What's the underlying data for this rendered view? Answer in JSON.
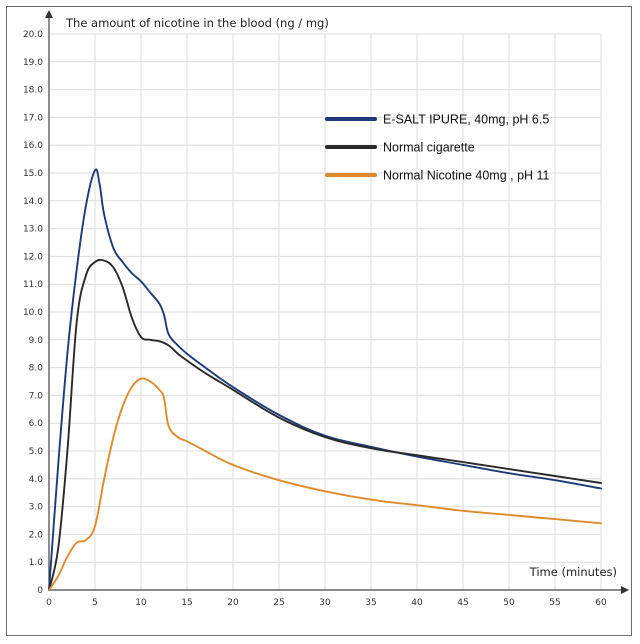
{
  "chart_data": {
    "type": "line",
    "title": "",
    "ylabel": "The amount of nicotine in the blood (ng / mg)",
    "xlabel": "Time (minutes)",
    "xlim": [
      0,
      60
    ],
    "ylim": [
      0,
      20
    ],
    "x_ticks": [
      "0",
      "5",
      "10",
      "15",
      "20",
      "25",
      "30",
      "35",
      "40",
      "45",
      "50",
      "55",
      "60"
    ],
    "y_ticks": [
      "0",
      "1.0",
      "2.0",
      "3.0",
      "4.0",
      "5.0",
      "6.0",
      "7.0",
      "8.0",
      "9.0",
      "10.0",
      "11.0",
      "12.0",
      "13.0",
      "14.0",
      "15.0",
      "16.0",
      "17.0",
      "18.0",
      "19.0",
      "20.0"
    ],
    "grid": true,
    "legend_position": "top-right",
    "series": [
      {
        "name": "E-SALT IPURE, 40mg, pH 6.5",
        "color": "#1f3a7a",
        "points": [
          [
            0,
            0
          ],
          [
            1,
            4.5
          ],
          [
            2,
            8.5
          ],
          [
            3,
            11.5
          ],
          [
            4,
            13.8
          ],
          [
            5,
            15.1
          ],
          [
            5.5,
            14.6
          ],
          [
            6,
            13.5
          ],
          [
            7,
            12.3
          ],
          [
            8,
            11.8
          ],
          [
            9,
            11.4
          ],
          [
            10,
            11.1
          ],
          [
            11,
            10.7
          ],
          [
            12,
            10.3
          ],
          [
            12.5,
            9.9
          ],
          [
            13,
            9.2
          ],
          [
            14,
            8.8
          ],
          [
            15,
            8.5
          ],
          [
            17,
            8.0
          ],
          [
            20,
            7.3
          ],
          [
            25,
            6.3
          ],
          [
            30,
            5.55
          ],
          [
            35,
            5.15
          ],
          [
            40,
            4.8
          ],
          [
            45,
            4.5
          ],
          [
            50,
            4.2
          ],
          [
            55,
            3.95
          ],
          [
            60,
            3.65
          ]
        ]
      },
      {
        "name": "Normal cigarette",
        "color": "#2a2a2a",
        "points": [
          [
            0,
            0
          ],
          [
            1,
            1.5
          ],
          [
            2,
            5
          ],
          [
            3,
            9.6
          ],
          [
            4,
            11.3
          ],
          [
            5,
            11.8
          ],
          [
            6,
            11.85
          ],
          [
            7,
            11.6
          ],
          [
            8,
            10.9
          ],
          [
            9,
            9.8
          ],
          [
            10,
            9.1
          ],
          [
            11,
            9.0
          ],
          [
            12,
            8.95
          ],
          [
            13,
            8.8
          ],
          [
            14,
            8.5
          ],
          [
            15,
            8.25
          ],
          [
            17,
            7.8
          ],
          [
            20,
            7.2
          ],
          [
            25,
            6.2
          ],
          [
            30,
            5.5
          ],
          [
            35,
            5.1
          ],
          [
            40,
            4.85
          ],
          [
            45,
            4.6
          ],
          [
            50,
            4.35
          ],
          [
            55,
            4.1
          ],
          [
            60,
            3.85
          ]
        ]
      },
      {
        "name": "Normal Nicotine 40mg , pH 11",
        "color": "#e08a2e",
        "points": [
          [
            0,
            0
          ],
          [
            1,
            0.5
          ],
          [
            2,
            1.2
          ],
          [
            3,
            1.7
          ],
          [
            4,
            1.8
          ],
          [
            5,
            2.3
          ],
          [
            6,
            4.0
          ],
          [
            7,
            5.5
          ],
          [
            8,
            6.6
          ],
          [
            9,
            7.3
          ],
          [
            10,
            7.6
          ],
          [
            11,
            7.5
          ],
          [
            12,
            7.2
          ],
          [
            12.5,
            6.9
          ],
          [
            13,
            5.9
          ],
          [
            14,
            5.5
          ],
          [
            15,
            5.35
          ],
          [
            17,
            5.0
          ],
          [
            20,
            4.5
          ],
          [
            25,
            3.95
          ],
          [
            30,
            3.55
          ],
          [
            35,
            3.25
          ],
          [
            40,
            3.05
          ],
          [
            45,
            2.85
          ],
          [
            50,
            2.7
          ],
          [
            55,
            2.55
          ],
          [
            60,
            2.4
          ]
        ]
      }
    ]
  }
}
